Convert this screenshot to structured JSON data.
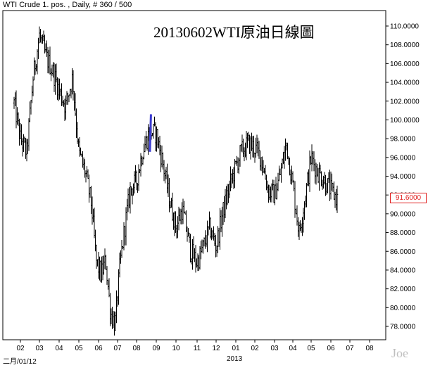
{
  "header": {
    "instrument": "WTI Crude 1. pos. , Daily, # 360 / 500"
  },
  "watermark": "Joe",
  "chart_data": {
    "type": "ohlc",
    "title": "20130602WTI原油日線圖",
    "y_axis": {
      "ticks": [
        "110.0000",
        "108.0000",
        "106.0000",
        "104.0000",
        "102.0000",
        "100.0000",
        "98.0000",
        "96.0000",
        "94.0000",
        "92.0000",
        "90.0000",
        "88.0000",
        "86.0000",
        "84.0000",
        "82.0000",
        "80.0000",
        "78.0000"
      ],
      "range": [
        77.0,
        111.0
      ]
    },
    "x_axis": {
      "ticks": [
        "02",
        "03",
        "04",
        "05",
        "06",
        "07",
        "08",
        "09",
        "10",
        "11",
        "12",
        "01",
        "02",
        "03",
        "04",
        "05",
        "06",
        "07",
        "08"
      ],
      "bottom_labels": [
        "二月/01/12",
        "2013"
      ]
    },
    "last_price": "91.6000",
    "trendline": {
      "color": "#3b3bd0",
      "from": [
        "09",
        100.6
      ],
      "to": [
        "08",
        96.6
      ]
    },
    "price_path": [
      [
        "02",
        101.8
      ],
      [
        "02",
        98.0
      ],
      [
        "02",
        96.5
      ],
      [
        "03",
        104.5
      ],
      [
        "03",
        109.0
      ],
      [
        "03",
        106.8
      ],
      [
        "04",
        105.2
      ],
      [
        "04",
        103.2
      ],
      [
        "04",
        101.5
      ],
      [
        "05",
        104.5
      ],
      [
        "05",
        96.5
      ],
      [
        "05",
        94.5
      ],
      [
        "06",
        91.0
      ],
      [
        "06",
        85.0
      ],
      [
        "06",
        83.5
      ],
      [
        "06",
        85.0
      ],
      [
        "07",
        79.5
      ],
      [
        "07",
        78.2
      ],
      [
        "07",
        84.5
      ],
      [
        "07",
        88.5
      ],
      [
        "08",
        92.5
      ],
      [
        "08",
        93.5
      ],
      [
        "08",
        96.8
      ],
      [
        "09",
        98.8
      ],
      [
        "09",
        98.5
      ],
      [
        "09",
        95.5
      ],
      [
        "10",
        91.5
      ],
      [
        "10",
        88.5
      ],
      [
        "10",
        90.5
      ],
      [
        "11",
        86.0
      ],
      [
        "11",
        84.8
      ],
      [
        "11",
        86.5
      ],
      [
        "12",
        88.5
      ],
      [
        "12",
        86.5
      ],
      [
        "12",
        90.0
      ],
      [
        "01",
        93.5
      ],
      [
        "01",
        96.5
      ],
      [
        "02",
        97.5
      ],
      [
        "02",
        97.0
      ],
      [
        "02",
        96.0
      ],
      [
        "03",
        92.5
      ],
      [
        "03",
        92.0
      ],
      [
        "03",
        94.5
      ],
      [
        "04",
        97.5
      ],
      [
        "04",
        93.0
      ],
      [
        "04",
        88.0
      ],
      [
        "05",
        91.5
      ],
      [
        "05",
        96.0
      ],
      [
        "05",
        94.5
      ],
      [
        "06",
        93.5
      ],
      [
        "06",
        92.5
      ],
      [
        "06",
        91.6
      ]
    ]
  }
}
